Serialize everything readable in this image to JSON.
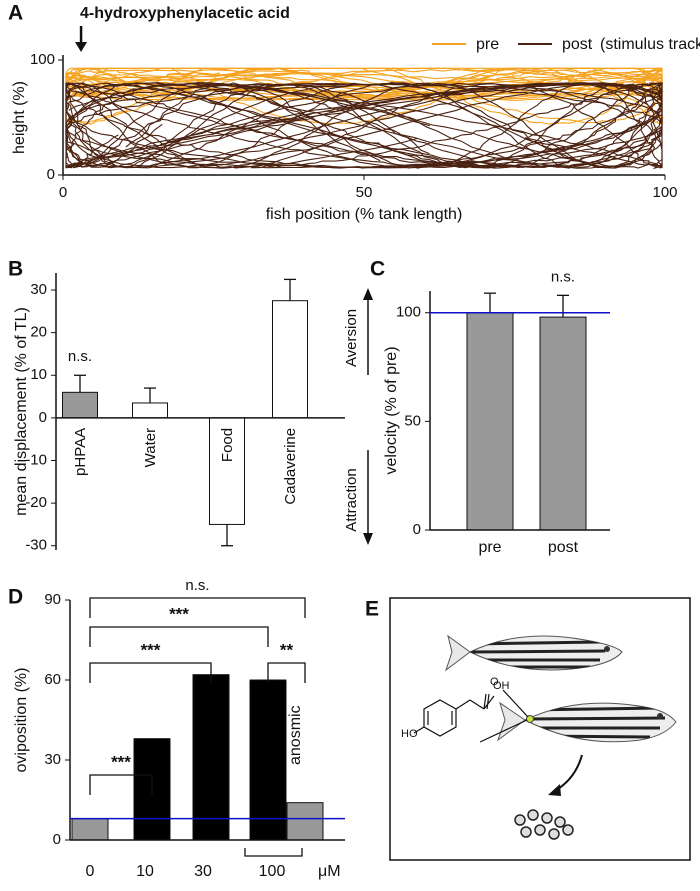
{
  "chart_data": [
    {
      "type": "line",
      "panel": "A",
      "title": "4-hydroxyphenylacetic acid",
      "xlabel": "fish position (% tank length)",
      "ylabel": "height (%)",
      "xlim": [
        0,
        100
      ],
      "xticks": [
        0,
        50,
        100
      ],
      "ylim": [
        0,
        100
      ],
      "yticks": [
        0,
        100
      ],
      "stimulus_x": 3,
      "series": [
        {
          "name": "pre",
          "color": "#f5a21e"
        },
        {
          "name": "post",
          "color": "#4b2212"
        }
      ],
      "legend_note": "(stimulus tracks)"
    },
    {
      "type": "bar",
      "panel": "B",
      "ylabel": "mean displacement (% of TL)",
      "categories": [
        "pHPAA",
        "Water",
        "Food",
        "Cadaverine"
      ],
      "values": [
        6,
        3.5,
        -25,
        27.5
      ],
      "errors": [
        4,
        3.5,
        5,
        5
      ],
      "colors": [
        "#999999",
        "#ffffff",
        "#ffffff",
        "#ffffff"
      ],
      "ylim": [
        -31,
        34
      ],
      "yticks": [
        -30,
        -20,
        -10,
        0,
        10,
        20,
        30
      ],
      "annotations": [
        {
          "category": 0,
          "label": "n.s."
        }
      ],
      "arrows": {
        "up": "Aversion",
        "down": "Attraction"
      }
    },
    {
      "type": "bar",
      "panel": "C",
      "ylabel": "velocity (% of pre)",
      "categories": [
        "pre",
        "post"
      ],
      "values": [
        100,
        98
      ],
      "errors": [
        9,
        10
      ],
      "colors": [
        "#999999",
        "#999999"
      ],
      "ylim": [
        0,
        110
      ],
      "yticks": [
        0,
        50,
        100
      ],
      "reference_line": {
        "value": 100,
        "color": "#1010cc"
      },
      "annotations": [
        {
          "category": 1,
          "label": "n.s."
        }
      ]
    },
    {
      "type": "bar",
      "panel": "D",
      "ylabel": "oviposition (%)",
      "categories": [
        "0",
        "10",
        "30",
        "100",
        "anosmic"
      ],
      "unit": "μM",
      "values": [
        8,
        38,
        62,
        60,
        14
      ],
      "colors": [
        "#999999",
        "#000000",
        "#000000",
        "#000000",
        "#999999"
      ],
      "ylim": [
        0,
        90
      ],
      "yticks": [
        0,
        30,
        60,
        90
      ],
      "reference_line": {
        "value": 8,
        "color": "#1010cc"
      },
      "comparisons": [
        {
          "from": 0,
          "to": 1,
          "label": "***"
        },
        {
          "from": 0,
          "to": 2,
          "label": "***"
        },
        {
          "from": 0,
          "to": 3,
          "label": "***"
        },
        {
          "from": 0,
          "to": 4,
          "label": "n.s."
        },
        {
          "from": 3,
          "to": 4,
          "label": "**"
        }
      ]
    }
  ],
  "diagram": {
    "panel": "E",
    "molecule_labels": [
      "HO",
      "OH"
    ]
  }
}
